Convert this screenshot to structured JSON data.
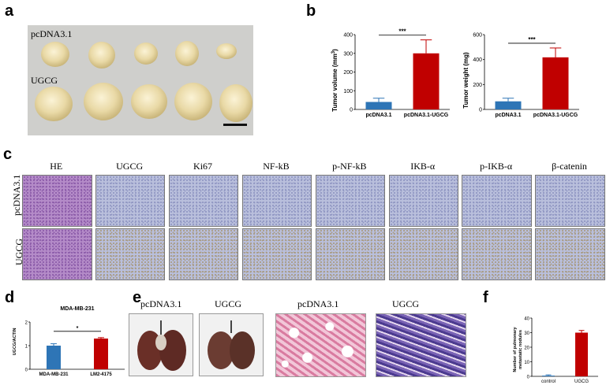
{
  "panels": {
    "a": "a",
    "b": "b",
    "c": "c",
    "d": "d",
    "e": "e",
    "f": "f"
  },
  "panel_a": {
    "row1_label": "pcDNA3.1",
    "row2_label": "UGCG"
  },
  "panel_c": {
    "columns": [
      "HE",
      "UGCG",
      "Ki67",
      "NF-kB",
      "p-NF-kB",
      "IKB-α",
      "p-IKB-α",
      "β-catenin"
    ],
    "rows": [
      "pcDNA3.1",
      "UGCG"
    ]
  },
  "panel_e": {
    "labels": [
      "pcDNA3.1",
      "UGCG",
      "pcDNA3.1",
      "UGCG"
    ]
  },
  "colors": {
    "blue": "#2e75b6",
    "red": "#c00000",
    "he": "#b48bc8",
    "ihc": "#b9bfdc"
  },
  "chart_data": [
    {
      "type": "bar",
      "id": "b-volume",
      "categories": [
        "pcDNA3.1",
        "pcDNA3.1-UGCG"
      ],
      "values": [
        40,
        300
      ],
      "errors": [
        20,
        72
      ],
      "ylabel_main": "Tumor volume (mm",
      "ylabel_sup": "3",
      "ylabel_end": ")",
      "ylim": [
        0,
        400
      ],
      "yticks": [
        "0",
        "100",
        "200",
        "300",
        "400"
      ],
      "significance": "***"
    },
    {
      "type": "bar",
      "id": "b-weight",
      "categories": [
        "pcDNA3.1",
        "pcDNA3.1-UGCG"
      ],
      "values": [
        65,
        418
      ],
      "errors": [
        25,
        75
      ],
      "ylabel": "Tumor weight (mg)",
      "ylim": [
        0,
        600
      ],
      "yticks": [
        "0",
        "200",
        "400",
        "600"
      ],
      "significance": "***"
    },
    {
      "type": "bar",
      "id": "d-ratio",
      "title": "MDA-MB-231",
      "categories": [
        "MDA-MB-231",
        "LM2-4175"
      ],
      "values": [
        1.0,
        1.3
      ],
      "errors": [
        0.08,
        0.04
      ],
      "ylabel": "UGCG/ACTIN",
      "ylim": [
        0,
        2
      ],
      "yticks": [
        "0",
        "1",
        "2"
      ],
      "significance": "*"
    },
    {
      "type": "bar",
      "id": "f-nodules",
      "categories": [
        "control",
        "UGCG"
      ],
      "values": [
        0.5,
        30
      ],
      "errors": [
        0.5,
        1.5
      ],
      "ylabel_lines": [
        "Number of pulmonary",
        "metastatic nodules"
      ],
      "ylim": [
        0,
        40
      ],
      "yticks": [
        "0",
        "10",
        "20",
        "30",
        "40"
      ]
    }
  ]
}
